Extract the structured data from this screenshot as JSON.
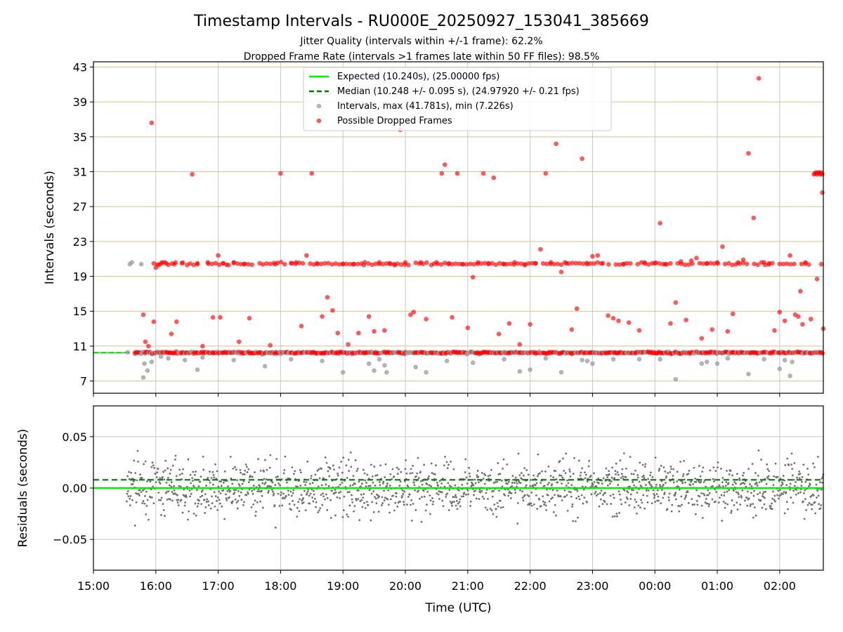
{
  "figure": {
    "title": "Timestamp Intervals - RU000E_20250927_153041_385669",
    "subtitle_1": "Jitter Quality (intervals within +/-1 frame): 62.2%",
    "subtitle_2": "Dropped Frame Rate (intervals >1 frames late within 50 FF files): 98.5%"
  },
  "colors": {
    "expected": "#00ee00",
    "median": "#007a00",
    "intervals": "#999999",
    "dropped": "#ff0000",
    "hgrid": "#d6c38a",
    "vgrid": "#c8c8c8",
    "residual_points": "#707070"
  },
  "chart_data": [
    {
      "type": "scatter",
      "xlabel": "",
      "ylabel": "Intervals (seconds)",
      "xlim": [
        "15:00",
        "02:42"
      ],
      "ylim": [
        5.6,
        43.6
      ],
      "yticks": [
        7,
        11,
        15,
        19,
        23,
        27,
        31,
        35,
        39,
        43
      ],
      "grid": "on",
      "legend_position": "top-center",
      "legend": [
        {
          "label": "Expected (10.240s), (25.00000 fps)",
          "style": "solid-line"
        },
        {
          "label": "Median (10.248 +/- 0.095 s), (24.97920 +/- 0.21 fps)",
          "style": "dashed-line"
        },
        {
          "label": "Intervals, max (41.781s), min (7.226s)",
          "style": "grey-marker"
        },
        {
          "label": "Possible Dropped Frames",
          "style": "red-marker"
        }
      ],
      "expected_interval": 10.24,
      "median_interval": 10.248,
      "series": [
        {
          "name": "Intervals, max (41.781s), min (7.226s)",
          "points": [
            [
              "15:33",
              10.3
            ],
            [
              "15:35",
              20.4
            ],
            [
              "15:37",
              20.6
            ],
            [
              "15:40",
              10.1
            ],
            [
              "15:46",
              20.4
            ],
            [
              "15:48",
              7.4
            ],
            [
              "15:49",
              9.0
            ],
            [
              "15:52",
              8.2
            ],
            [
              "15:56",
              9.2
            ],
            [
              "16:05",
              9.8
            ],
            [
              "16:12",
              9.6
            ],
            [
              "16:28",
              9.4
            ],
            [
              "16:40",
              8.3
            ],
            [
              "16:45",
              9.7
            ],
            [
              "17:15",
              9.4
            ],
            [
              "17:45",
              8.7
            ],
            [
              "18:10",
              9.5
            ],
            [
              "18:40",
              9.3
            ],
            [
              "19:00",
              8.0
            ],
            [
              "19:25",
              9.0
            ],
            [
              "19:30",
              8.2
            ],
            [
              "19:35",
              9.5
            ],
            [
              "19:40",
              8.8
            ],
            [
              "19:42",
              8.0
            ],
            [
              "20:10",
              8.6
            ],
            [
              "20:20",
              8.0
            ],
            [
              "20:40",
              9.3
            ],
            [
              "21:05",
              9.1
            ],
            [
              "21:35",
              9.5
            ],
            [
              "21:50",
              8.1
            ],
            [
              "22:00",
              8.3
            ],
            [
              "22:15",
              9.6
            ],
            [
              "22:30",
              8.0
            ],
            [
              "22:50",
              9.4
            ],
            [
              "22:55",
              9.3
            ],
            [
              "23:00",
              9.0
            ],
            [
              "23:20",
              9.5
            ],
            [
              "23:45",
              9.5
            ],
            [
              "00:05",
              9.5
            ],
            [
              "00:20",
              7.2
            ],
            [
              "00:45",
              9.0
            ],
            [
              "00:50",
              9.2
            ],
            [
              "01:00",
              9.0
            ],
            [
              "01:10",
              9.6
            ],
            [
              "01:30",
              7.8
            ],
            [
              "01:45",
              9.5
            ],
            [
              "02:00",
              8.4
            ],
            [
              "02:05",
              9.4
            ],
            [
              "02:10",
              7.6
            ],
            [
              "02:12",
              9.2
            ]
          ]
        },
        {
          "name": "Possible Dropped Frames",
          "points": [
            [
              "15:48",
              14.6
            ],
            [
              "15:50",
              11.5
            ],
            [
              "15:53",
              11.0
            ],
            [
              "15:56",
              36.6
            ],
            [
              "15:58",
              13.8
            ],
            [
              "16:00",
              20.0
            ],
            [
              "16:03",
              20.3
            ],
            [
              "16:06",
              20.6
            ],
            [
              "16:10",
              20.5
            ],
            [
              "16:15",
              12.4
            ],
            [
              "16:18",
              20.4
            ],
            [
              "16:20",
              13.8
            ],
            [
              "16:25",
              20.5
            ],
            [
              "16:30",
              20.3
            ],
            [
              "16:35",
              30.7
            ],
            [
              "16:40",
              20.4
            ],
            [
              "16:45",
              11.0
            ],
            [
              "16:50",
              20.6
            ],
            [
              "16:55",
              14.3
            ],
            [
              "17:00",
              21.4
            ],
            [
              "17:02",
              14.3
            ],
            [
              "17:05",
              20.5
            ],
            [
              "17:10",
              20.3
            ],
            [
              "17:15",
              20.6
            ],
            [
              "17:20",
              11.5
            ],
            [
              "17:25",
              20.4
            ],
            [
              "17:30",
              14.2
            ],
            [
              "17:40",
              20.5
            ],
            [
              "17:50",
              11.1
            ],
            [
              "17:55",
              20.4
            ],
            [
              "18:00",
              30.8
            ],
            [
              "18:10",
              20.5
            ],
            [
              "18:15",
              20.6
            ],
            [
              "18:20",
              13.3
            ],
            [
              "18:25",
              21.4
            ],
            [
              "18:30",
              30.8
            ],
            [
              "18:35",
              20.5
            ],
            [
              "18:40",
              14.4
            ],
            [
              "18:45",
              16.6
            ],
            [
              "18:50",
              15.1
            ],
            [
              "18:55",
              12.5
            ],
            [
              "19:00",
              20.4
            ],
            [
              "19:05",
              11.2
            ],
            [
              "19:10",
              20.4
            ],
            [
              "19:15",
              12.5
            ],
            [
              "19:20",
              20.3
            ],
            [
              "19:25",
              14.4
            ],
            [
              "19:30",
              12.7
            ],
            [
              "19:35",
              20.6
            ],
            [
              "19:40",
              12.8
            ],
            [
              "19:45",
              20.5
            ],
            [
              "19:50",
              20.3
            ],
            [
              "19:55",
              35.8
            ],
            [
              "20:00",
              20.6
            ],
            [
              "20:05",
              14.6
            ],
            [
              "20:08",
              14.9
            ],
            [
              "20:15",
              20.6
            ],
            [
              "20:20",
              14.1
            ],
            [
              "20:25",
              20.3
            ],
            [
              "20:30",
              20.6
            ],
            [
              "20:35",
              30.8
            ],
            [
              "20:38",
              31.8
            ],
            [
              "20:42",
              20.5
            ],
            [
              "20:45",
              14.3
            ],
            [
              "20:50",
              30.8
            ],
            [
              "20:55",
              20.4
            ],
            [
              "21:00",
              13.1
            ],
            [
              "21:05",
              18.9
            ],
            [
              "21:10",
              20.6
            ],
            [
              "21:15",
              30.8
            ],
            [
              "21:20",
              20.5
            ],
            [
              "21:25",
              30.3
            ],
            [
              "21:30",
              12.4
            ],
            [
              "21:35",
              20.4
            ],
            [
              "21:40",
              13.6
            ],
            [
              "21:45",
              20.6
            ],
            [
              "21:50",
              11.2
            ],
            [
              "21:55",
              20.3
            ],
            [
              "22:00",
              13.5
            ],
            [
              "22:05",
              20.5
            ],
            [
              "22:10",
              22.1
            ],
            [
              "22:15",
              30.8
            ],
            [
              "22:20",
              20.6
            ],
            [
              "22:25",
              34.2
            ],
            [
              "22:30",
              19.5
            ],
            [
              "22:35",
              20.5
            ],
            [
              "22:40",
              12.9
            ],
            [
              "22:45",
              15.3
            ],
            [
              "22:50",
              32.5
            ],
            [
              "22:55",
              20.4
            ],
            [
              "23:00",
              21.3
            ],
            [
              "23:05",
              21.4
            ],
            [
              "23:10",
              20.5
            ],
            [
              "23:15",
              14.5
            ],
            [
              "23:20",
              14.2
            ],
            [
              "23:25",
              13.9
            ],
            [
              "23:30",
              20.4
            ],
            [
              "23:35",
              13.7
            ],
            [
              "23:45",
              12.8
            ],
            [
              "23:50",
              20.6
            ],
            [
              "00:00",
              20.5
            ],
            [
              "00:05",
              25.1
            ],
            [
              "00:10",
              20.4
            ],
            [
              "00:15",
              13.6
            ],
            [
              "00:20",
              16.0
            ],
            [
              "00:25",
              20.7
            ],
            [
              "00:30",
              14.0
            ],
            [
              "00:35",
              20.8
            ],
            [
              "00:40",
              21.1
            ],
            [
              "00:45",
              11.9
            ],
            [
              "00:50",
              20.5
            ],
            [
              "00:55",
              12.9
            ],
            [
              "01:00",
              20.6
            ],
            [
              "01:05",
              22.4
            ],
            [
              "01:10",
              12.7
            ],
            [
              "01:15",
              14.7
            ],
            [
              "01:20",
              20.6
            ],
            [
              "01:25",
              20.9
            ],
            [
              "01:30",
              33.1
            ],
            [
              "01:35",
              25.7
            ],
            [
              "01:40",
              41.7
            ],
            [
              "01:45",
              20.6
            ],
            [
              "01:50",
              20.5
            ],
            [
              "01:55",
              12.8
            ],
            [
              "02:00",
              14.9
            ],
            [
              "02:05",
              13.9
            ],
            [
              "02:10",
              21.4
            ],
            [
              "02:15",
              14.6
            ],
            [
              "02:18",
              14.4
            ],
            [
              "02:20",
              17.3
            ],
            [
              "02:22",
              13.5
            ],
            [
              "02:25",
              20.6
            ],
            [
              "02:30",
              14.1
            ],
            [
              "02:34",
              30.8
            ],
            [
              "02:36",
              18.7
            ],
            [
              "02:38",
              30.9
            ],
            [
              "02:40",
              20.4
            ],
            [
              "02:41",
              28.6
            ],
            [
              "02:42",
              13.0
            ]
          ]
        }
      ]
    },
    {
      "type": "scatter",
      "xlabel": "Time (UTC)",
      "ylabel": "Residuals (seconds)",
      "xlim": [
        "15:00",
        "02:42"
      ],
      "ylim": [
        -0.08,
        0.08
      ],
      "yticks": [
        -0.05,
        0.0,
        0.05
      ],
      "ytick_labels": [
        "−0.05",
        "0.00",
        "0.05"
      ],
      "xticks": [
        "15:00",
        "16:00",
        "17:00",
        "18:00",
        "19:00",
        "20:00",
        "21:00",
        "22:00",
        "23:00",
        "00:00",
        "01:00",
        "02:00"
      ],
      "grid": "on",
      "expected_residual": 0.0,
      "median_residual": 0.008,
      "residual_spread_seconds": 0.08
    }
  ]
}
